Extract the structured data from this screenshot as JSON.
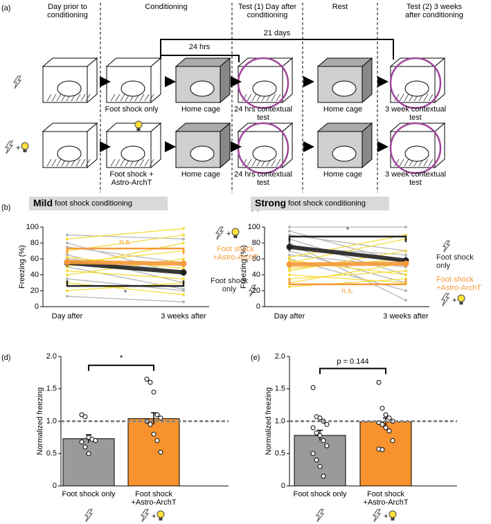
{
  "panel_a": {
    "label": "(a)",
    "columns": [
      "Day prior to conditioning",
      "Conditioning",
      "Test (1) Day after conditioning",
      "Rest",
      "Test (2) 3 weeks after conditioning"
    ],
    "timeline": [
      "21 days",
      "24 hrs"
    ],
    "rows": [
      [
        "Foot shock only",
        "Home cage",
        "24 hrs contextual test",
        "Home cage",
        "3 week contextual test"
      ],
      [
        "Foot shock + Astro-ArchT",
        "Home cage",
        "24 hrs contextual test",
        "Home cage",
        "3 week contextual test"
      ]
    ]
  },
  "icon_join": "+",
  "chart_data": [
    {
      "type": "line",
      "panel": "(b)",
      "title_bold": "Mild",
      "title": "foot shock conditioning",
      "ylabel": "Freezing (%)",
      "categories": [
        "Day after",
        "3 weeks after"
      ],
      "ylim": [
        0,
        100
      ],
      "yticks": [
        0,
        20,
        40,
        60,
        80,
        100
      ],
      "individual": [
        {
          "color": "#b5b5b5",
          "lines": [
            [
              90,
              85
            ],
            [
              80,
              40
            ],
            [
              65,
              30
            ],
            [
              50,
              22
            ],
            [
              35,
              20
            ],
            [
              13,
              6
            ],
            [
              75,
              55
            ],
            [
              60,
              45
            ]
          ]
        },
        {
          "color": "#f5dc3c",
          "lines": [
            [
              85,
              98
            ],
            [
              70,
              90
            ],
            [
              55,
              70
            ],
            [
              45,
              35
            ],
            [
              30,
              15
            ],
            [
              40,
              60
            ],
            [
              62,
              48
            ],
            [
              50,
              80
            ],
            [
              20,
              30
            ]
          ]
        }
      ],
      "series": [
        {
          "color": "#222222",
          "values": [
            55,
            43
          ],
          "errors": [
            5,
            4
          ]
        },
        {
          "color": "#f59a3a",
          "values": [
            56,
            54
          ],
          "errors": [
            5,
            5
          ]
        }
      ],
      "annotations": [
        {
          "text": "n.s.",
          "color": "#f59a3a"
        },
        {
          "text": "*",
          "color": "#222222"
        }
      ],
      "legend": [
        {
          "label": "Foot shock +Astro-ArchT",
          "color": "#f59a3a"
        },
        {
          "label": "Foot shock only",
          "color": "#222222"
        }
      ]
    },
    {
      "type": "line",
      "panel": "(c)",
      "title_bold": "Strong",
      "title": "foot shock conditioning",
      "ylabel": "Freezing (%)",
      "categories": [
        "Day after",
        "3 weeks after"
      ],
      "ylim": [
        0,
        100
      ],
      "yticks": [
        0,
        20,
        40,
        60,
        80,
        100
      ],
      "individual": [
        {
          "color": "#b5b5b5",
          "lines": [
            [
              100,
              100
            ],
            [
              95,
              55
            ],
            [
              90,
              70
            ],
            [
              85,
              40
            ],
            [
              80,
              8
            ],
            [
              70,
              30
            ],
            [
              65,
              50
            ],
            [
              60,
              20
            ],
            [
              75,
              65
            ]
          ]
        },
        {
          "color": "#f5dc3c",
          "lines": [
            [
              62,
              90
            ],
            [
              55,
              85
            ],
            [
              48,
              60
            ],
            [
              40,
              30
            ],
            [
              35,
              45
            ],
            [
              30,
              55
            ],
            [
              58,
              40
            ],
            [
              45,
              70
            ],
            [
              25,
              35
            ]
          ]
        }
      ],
      "series": [
        {
          "color": "#222222",
          "values": [
            75,
            58
          ],
          "errors": [
            5,
            5
          ]
        },
        {
          "color": "#f59a3a",
          "values": [
            53,
            54
          ],
          "errors": [
            4,
            4
          ]
        }
      ],
      "annotations": [
        {
          "text": "*",
          "color": "#222222"
        },
        {
          "text": "n.s.",
          "color": "#f59a3a"
        }
      ],
      "legend": [
        {
          "label": "Foot shock only",
          "color": "#222222"
        },
        {
          "label": "Foot shock +Astro-ArchT",
          "color": "#f59a3a"
        }
      ]
    },
    {
      "type": "bar",
      "panel": "(d)",
      "ylabel": "Normalized freezing",
      "categories": [
        "Foot shock only",
        "Foot shock +Astro-ArchT"
      ],
      "values": [
        0.73,
        1.04
      ],
      "errors": [
        0.06,
        0.09
      ],
      "colors": [
        "#9a9a9a",
        "#f7922f"
      ],
      "points": [
        [
          1.1,
          1.07,
          0.75,
          0.72,
          0.7,
          0.68,
          0.6,
          0.5
        ],
        [
          1.65,
          1.6,
          1.45,
          1.1,
          1.05,
          1.0,
          0.95,
          0.8,
          0.7,
          0.52
        ]
      ],
      "ylim": [
        0,
        2
      ],
      "yticks": [
        0,
        {
          "value": 0.5,
          "label": "0.5"
        },
        {
          "value": 1,
          "label": "1.0"
        },
        {
          "value": 1.5,
          "label": "1.5"
        },
        {
          "value": 2,
          "label": "2.0"
        }
      ],
      "reference": 1,
      "annotation": "*"
    },
    {
      "type": "bar",
      "panel": "(e)",
      "ylabel": "Normalized freezing",
      "categories": [
        "Foot shock only",
        "Foot shock +Astro-ArchT"
      ],
      "values": [
        0.78,
        0.99
      ],
      "errors": [
        0.08,
        0.06
      ],
      "colors": [
        "#9a9a9a",
        "#f7922f"
      ],
      "points": [
        [
          1.52,
          1.07,
          1.05,
          1.0,
          0.95,
          0.9,
          0.82,
          0.78,
          0.7,
          0.62,
          0.5,
          0.4,
          0.3,
          0.15
        ],
        [
          1.6,
          1.2,
          1.1,
          1.05,
          1.0,
          0.98,
          0.95,
          0.9,
          0.85,
          0.7,
          0.57,
          0.56
        ]
      ],
      "ylim": [
        0,
        2
      ],
      "yticks": [
        0,
        {
          "value": 0.5,
          "label": "0.5"
        },
        {
          "value": 1,
          "label": "1.0"
        },
        {
          "value": 1.5,
          "label": "1.5"
        },
        {
          "value": 2,
          "label": "2.0"
        }
      ],
      "reference": 1,
      "annotation": "p = 0.144"
    }
  ]
}
